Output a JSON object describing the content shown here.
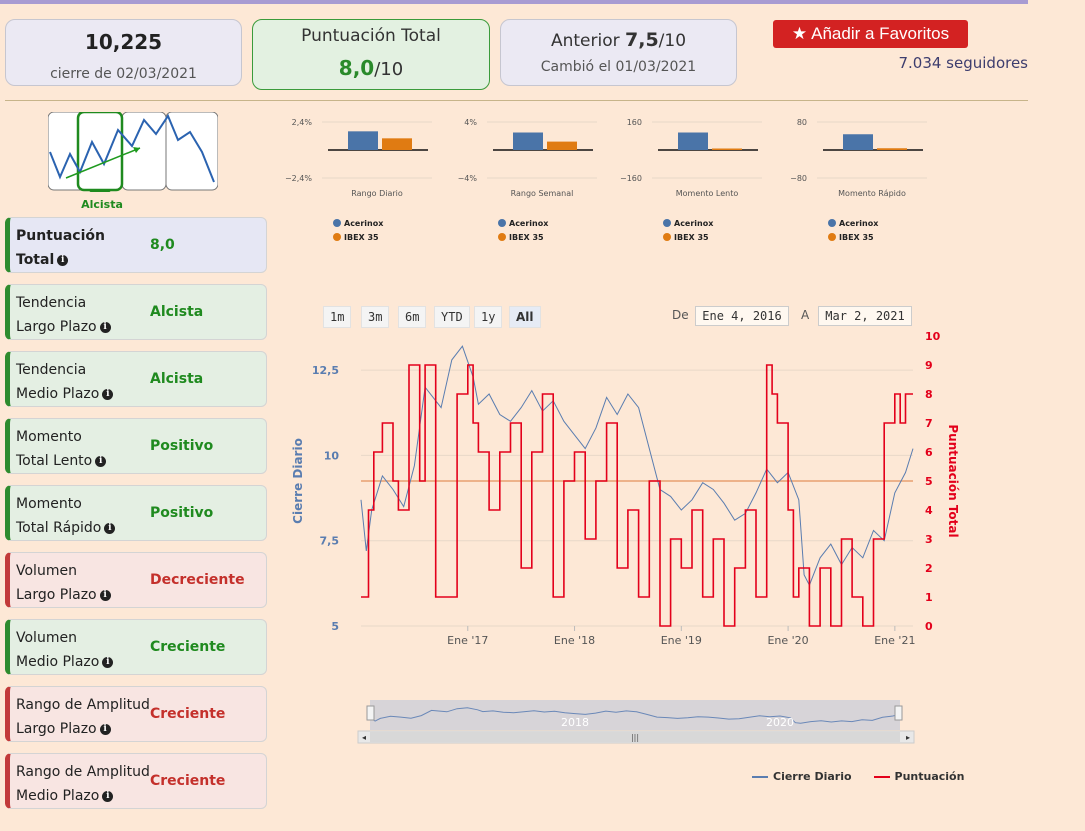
{
  "header": {
    "close_value": "10,225",
    "close_date": "cierre de 02/03/2021",
    "score_title": "Puntuación Total",
    "score_value": "8,0",
    "score_denominator": "/10",
    "prev_label": "Anterior",
    "prev_value": "7,5",
    "prev_denominator": "/10",
    "prev_changed": "Cambió el 01/03/2021",
    "favorite_label": "Añadir a Favoritos",
    "followers": "7.034 seguidores"
  },
  "trend": {
    "label": "Alcista"
  },
  "metrics": [
    {
      "label1": "Puntuación",
      "label2": "Total",
      "value": "8,0",
      "status": "blue"
    },
    {
      "label1": "Tendencia",
      "label2": "Largo Plazo",
      "value": "Alcista",
      "status": "green"
    },
    {
      "label1": "Tendencia",
      "label2": "Medio Plazo",
      "value": "Alcista",
      "status": "green"
    },
    {
      "label1": "Momento",
      "label2": "Total Lento",
      "value": "Positivo",
      "status": "green"
    },
    {
      "label1": "Momento",
      "label2": "Total Rápido",
      "value": "Positivo",
      "status": "green"
    },
    {
      "label1": "Volumen",
      "label2": "Largo Plazo",
      "value": "Decreciente",
      "status": "red"
    },
    {
      "label1": "Volumen",
      "label2": "Medio Plazo",
      "value": "Creciente",
      "status": "green"
    },
    {
      "label1": "Rango de Amplitud",
      "label2": "Largo Plazo",
      "value": "Creciente",
      "status": "red"
    },
    {
      "label1": "Rango de Amplitud",
      "label2": "Medio Plazo",
      "value": "Creciente",
      "status": "red"
    }
  ],
  "range_buttons": [
    "1m",
    "3m",
    "6m",
    "YTD",
    "1y",
    "All"
  ],
  "date_range": {
    "from_label": "De",
    "from": "Ene 4, 2016",
    "to_label": "A",
    "to": "Mar 2, 2021"
  },
  "navigator": {
    "labels": [
      "2018",
      "2020"
    ]
  },
  "colors": {
    "acerinox": "#4a74a8",
    "ibex": "#e07b12",
    "price": "#5a7db0",
    "score": "#e3001b"
  },
  "chart_data": [
    {
      "type": "bar",
      "title": "Rango Diario",
      "categories": [
        "Acerinox",
        "IBEX 35"
      ],
      "values": [
        1.6,
        1.0
      ],
      "ylim": [
        -2.4,
        2.4
      ],
      "ytick_labels": [
        "2,4%",
        "−2,4%"
      ]
    },
    {
      "type": "bar",
      "title": "Rango Semanal",
      "categories": [
        "Acerinox",
        "IBEX 35"
      ],
      "values": [
        2.5,
        1.2
      ],
      "ylim": [
        -4,
        4
      ],
      "ytick_labels": [
        "4%",
        "−4%"
      ]
    },
    {
      "type": "bar",
      "title": "Momento Lento",
      "categories": [
        "Acerinox",
        "IBEX 35"
      ],
      "values": [
        100,
        5
      ],
      "ylim": [
        -160,
        160
      ],
      "ytick_labels": [
        "160",
        "−160"
      ]
    },
    {
      "type": "bar",
      "title": "Momento Rápido",
      "categories": [
        "Acerinox",
        "IBEX 35"
      ],
      "values": [
        45,
        5
      ],
      "ylim": [
        -80,
        80
      ],
      "ytick_labels": [
        "80",
        "−80"
      ]
    },
    {
      "type": "line",
      "x_labels": [
        "Ene '17",
        "Ene '18",
        "Ene '19",
        "Ene '20",
        "Ene '21"
      ],
      "ylabel": "Cierre Diario",
      "ylabel_right": "Puntuación Total",
      "y_ticks": [
        "5",
        "7,5",
        "10",
        "12,5"
      ],
      "y2_ticks": [
        "0",
        "1",
        "2",
        "3",
        "4",
        "5",
        "6",
        "7",
        "8",
        "9",
        "10"
      ],
      "ylim": [
        5,
        13.5
      ],
      "y2lim": [
        0,
        10
      ],
      "reference_score": 5,
      "series": [
        {
          "name": "Cierre Diario",
          "axis": "left",
          "x": [
            2016.0,
            2016.05,
            2016.1,
            2016.2,
            2016.3,
            2016.4,
            2016.5,
            2016.6,
            2016.75,
            2016.85,
            2016.95,
            2017.05,
            2017.1,
            2017.2,
            2017.3,
            2017.4,
            2017.5,
            2017.6,
            2017.7,
            2017.8,
            2017.9,
            2018.0,
            2018.1,
            2018.2,
            2018.3,
            2018.4,
            2018.5,
            2018.6,
            2018.7,
            2018.8,
            2018.9,
            2019.0,
            2019.1,
            2019.2,
            2019.3,
            2019.4,
            2019.5,
            2019.6,
            2019.7,
            2019.8,
            2019.9,
            2020.0,
            2020.1,
            2020.15,
            2020.2,
            2020.3,
            2020.4,
            2020.5,
            2020.6,
            2020.7,
            2020.8,
            2020.9,
            2021.0,
            2021.1,
            2021.17
          ],
          "y": [
            8.7,
            7.2,
            8.4,
            9.4,
            9.0,
            8.5,
            9.7,
            12.0,
            11.4,
            12.8,
            13.2,
            12.3,
            11.5,
            11.8,
            11.2,
            11.0,
            11.4,
            11.9,
            11.3,
            11.6,
            11.0,
            10.6,
            10.2,
            10.8,
            11.7,
            11.2,
            11.8,
            11.4,
            10.2,
            9.0,
            8.8,
            8.4,
            8.7,
            9.2,
            9.0,
            8.6,
            8.1,
            8.3,
            8.9,
            9.6,
            9.2,
            9.5,
            8.7,
            6.5,
            6.2,
            7.0,
            7.4,
            6.8,
            7.3,
            7.0,
            7.8,
            7.5,
            8.9,
            9.5,
            10.2
          ]
        },
        {
          "name": "Puntuación",
          "axis": "right",
          "x": [
            2016.0,
            2016.07,
            2016.12,
            2016.2,
            2016.3,
            2016.35,
            2016.45,
            2016.55,
            2016.6,
            2016.7,
            2016.8,
            2016.9,
            2017.0,
            2017.05,
            2017.1,
            2017.2,
            2017.3,
            2017.4,
            2017.5,
            2017.6,
            2017.7,
            2017.8,
            2017.9,
            2018.0,
            2018.1,
            2018.2,
            2018.3,
            2018.4,
            2018.5,
            2018.6,
            2018.7,
            2018.8,
            2018.9,
            2019.0,
            2019.1,
            2019.2,
            2019.3,
            2019.4,
            2019.5,
            2019.6,
            2019.7,
            2019.8,
            2019.85,
            2019.9,
            2020.0,
            2020.05,
            2020.1,
            2020.2,
            2020.3,
            2020.4,
            2020.5,
            2020.6,
            2020.7,
            2020.8,
            2020.9,
            2021.0,
            2021.05,
            2021.1,
            2021.17
          ],
          "y": [
            1,
            4,
            6,
            7,
            5,
            4,
            9,
            5,
            9,
            1,
            1,
            8,
            9,
            7,
            6,
            4,
            6,
            7,
            2,
            6,
            8,
            1,
            5,
            6,
            3,
            5,
            7,
            2,
            4,
            1,
            5,
            0,
            3,
            2,
            4,
            1,
            3,
            0,
            2,
            4,
            1,
            9,
            8,
            7,
            4,
            1,
            2,
            0,
            2,
            0,
            3,
            1,
            0,
            3,
            7,
            8,
            7,
            8,
            8
          ]
        }
      ],
      "legend": [
        "Cierre Diario",
        "Puntuación"
      ]
    }
  ]
}
